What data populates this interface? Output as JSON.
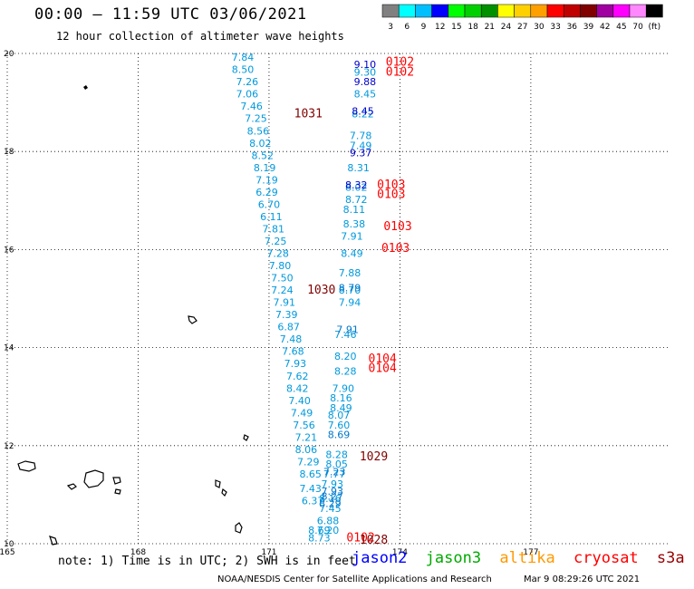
{
  "header": {
    "title": "00:00 – 11:59 UTC 03/06/2021",
    "subtitle": "12 hour collection of altimeter wave heights"
  },
  "colorbar": {
    "colors": [
      "#808080",
      "#00ffff",
      "#00bfff",
      "#0000ff",
      "#00ff00",
      "#00d000",
      "#009000",
      "#ffff00",
      "#ffd000",
      "#ffa000",
      "#ff0000",
      "#c00000",
      "#800000",
      "#a000a0",
      "#ff00ff",
      "#ff88ff",
      "#000000"
    ],
    "labels": [
      "3",
      "6",
      "9",
      "12",
      "15",
      "18",
      "21",
      "24",
      "27",
      "30",
      "33",
      "36",
      "39",
      "42",
      "45",
      "70",
      "(ft)"
    ]
  },
  "axes": {
    "x_ticks": [
      {
        "value": 165,
        "label": "165"
      },
      {
        "value": 168,
        "label": "168"
      },
      {
        "value": 171,
        "label": "171"
      },
      {
        "value": 174,
        "label": "174"
      },
      {
        "value": 177,
        "label": "177"
      }
    ],
    "y_ticks": [
      {
        "value": 10,
        "label": "10"
      },
      {
        "value": 12,
        "label": "12"
      },
      {
        "value": 14,
        "label": "14"
      },
      {
        "value": 16,
        "label": "16"
      },
      {
        "value": 18,
        "label": "18"
      },
      {
        "value": 20,
        "label": "20"
      }
    ],
    "xlim": [
      165,
      180.2
    ],
    "ylim": [
      10,
      20
    ],
    "grid": "dotted"
  },
  "tracks": [
    {
      "name": "left-track",
      "color": "#0099dd",
      "points": [
        {
          "lat": 19.85,
          "lon": 170.4,
          "v": "7.84"
        },
        {
          "lat": 19.6,
          "lon": 170.4,
          "v": "8.50"
        },
        {
          "lat": 19.35,
          "lon": 170.5,
          "v": "7.26"
        },
        {
          "lat": 19.1,
          "lon": 170.5,
          "v": "7.06"
        },
        {
          "lat": 18.85,
          "lon": 170.6,
          "v": "7.46"
        },
        {
          "lat": 18.6,
          "lon": 170.7,
          "v": "7.25"
        },
        {
          "lat": 18.35,
          "lon": 170.75,
          "v": "8.56"
        },
        {
          "lat": 18.1,
          "lon": 170.8,
          "v": "8.02"
        },
        {
          "lat": 17.85,
          "lon": 170.85,
          "v": "8.52"
        },
        {
          "lat": 17.6,
          "lon": 170.9,
          "v": "8.19"
        },
        {
          "lat": 17.35,
          "lon": 170.95,
          "v": "7.19"
        },
        {
          "lat": 17.1,
          "lon": 170.95,
          "v": "6.29"
        },
        {
          "lat": 16.85,
          "lon": 171.0,
          "v": "6.70"
        },
        {
          "lat": 16.6,
          "lon": 171.05,
          "v": "6.11"
        },
        {
          "lat": 16.35,
          "lon": 171.1,
          "v": "7.81"
        },
        {
          "lat": 16.1,
          "lon": 171.15,
          "v": "7.25"
        },
        {
          "lat": 15.85,
          "lon": 171.2,
          "v": "7.28"
        },
        {
          "lat": 15.6,
          "lon": 171.25,
          "v": "7.80"
        },
        {
          "lat": 15.35,
          "lon": 171.3,
          "v": "7.50"
        },
        {
          "lat": 15.1,
          "lon": 171.3,
          "v": "7.24"
        },
        {
          "lat": 14.85,
          "lon": 171.35,
          "v": "7.91"
        },
        {
          "lat": 14.6,
          "lon": 171.4,
          "v": "7.39"
        },
        {
          "lat": 14.35,
          "lon": 171.45,
          "v": "6.87"
        },
        {
          "lat": 14.1,
          "lon": 171.5,
          "v": "7.48"
        },
        {
          "lat": 13.85,
          "lon": 171.55,
          "v": "7.68"
        },
        {
          "lat": 13.6,
          "lon": 171.6,
          "v": "7.93"
        },
        {
          "lat": 13.35,
          "lon": 171.65,
          "v": "7.62"
        },
        {
          "lat": 13.1,
          "lon": 171.65,
          "v": "8.42"
        },
        {
          "lat": 12.85,
          "lon": 171.7,
          "v": "7.40"
        },
        {
          "lat": 12.6,
          "lon": 171.75,
          "v": "7.49"
        },
        {
          "lat": 12.35,
          "lon": 171.8,
          "v": "7.56"
        },
        {
          "lat": 12.1,
          "lon": 171.85,
          "v": "7.21"
        },
        {
          "lat": 11.85,
          "lon": 171.85,
          "v": "8.06"
        },
        {
          "lat": 11.6,
          "lon": 171.9,
          "v": "7.29"
        },
        {
          "lat": 11.35,
          "lon": 171.95,
          "v": "8.65"
        },
        {
          "lat": 11.05,
          "lon": 171.95,
          "v": "7.43"
        },
        {
          "lat": 10.8,
          "lon": 172.0,
          "v": "6.37"
        },
        {
          "lat": 10.2,
          "lon": 172.15,
          "v": "8.69"
        },
        {
          "lat": 10.05,
          "lon": 172.15,
          "v": "8.73"
        }
      ]
    },
    {
      "name": "right-track",
      "color": "#0099dd",
      "points": [
        {
          "lat": 19.55,
          "lon": 173.2,
          "v": "9.30"
        },
        {
          "lat": 19.1,
          "lon": 173.2,
          "v": "8.45"
        },
        {
          "lat": 18.7,
          "lon": 173.15,
          "v": "8.22"
        },
        {
          "lat": 18.25,
          "lon": 173.1,
          "v": "7.78"
        },
        {
          "lat": 18.05,
          "lon": 173.1,
          "v": "7.49"
        },
        {
          "lat": 17.6,
          "lon": 173.05,
          "v": "8.31"
        },
        {
          "lat": 17.2,
          "lon": 173.0,
          "v": "8.02"
        },
        {
          "lat": 16.95,
          "lon": 173.0,
          "v": "8.72"
        },
        {
          "lat": 16.75,
          "lon": 172.95,
          "v": "8.11"
        },
        {
          "lat": 16.45,
          "lon": 172.95,
          "v": "8.38"
        },
        {
          "lat": 16.2,
          "lon": 172.9,
          "v": "7.91"
        },
        {
          "lat": 15.85,
          "lon": 172.9,
          "v": "8.49"
        },
        {
          "lat": 15.45,
          "lon": 172.85,
          "v": "7.88"
        },
        {
          "lat": 15.1,
          "lon": 172.85,
          "v": "8.70"
        },
        {
          "lat": 14.85,
          "lon": 172.85,
          "v": "7.94"
        },
        {
          "lat": 14.2,
          "lon": 172.75,
          "v": "7.46"
        },
        {
          "lat": 13.75,
          "lon": 172.75,
          "v": "8.20"
        },
        {
          "lat": 13.45,
          "lon": 172.75,
          "v": "8.28"
        },
        {
          "lat": 13.1,
          "lon": 172.7,
          "v": "7.90"
        },
        {
          "lat": 12.9,
          "lon": 172.65,
          "v": "8.16"
        },
        {
          "lat": 12.7,
          "lon": 172.65,
          "v": "8.49"
        },
        {
          "lat": 12.55,
          "lon": 172.6,
          "v": "8.07"
        },
        {
          "lat": 12.35,
          "lon": 172.6,
          "v": "7.60"
        },
        {
          "lat": 11.75,
          "lon": 172.55,
          "v": "8.28"
        },
        {
          "lat": 11.55,
          "lon": 172.55,
          "v": "8.05"
        },
        {
          "lat": 11.35,
          "lon": 172.5,
          "v": "7.77"
        },
        {
          "lat": 11.15,
          "lon": 172.45,
          "v": "7.93"
        },
        {
          "lat": 10.85,
          "lon": 172.4,
          "v": "8.16"
        },
        {
          "lat": 10.65,
          "lon": 172.4,
          "v": "7.45"
        },
        {
          "lat": 10.4,
          "lon": 172.35,
          "v": "6.88"
        },
        {
          "lat": 10.2,
          "lon": 172.35,
          "v": "7.20"
        }
      ]
    },
    {
      "name": "right-track-dark",
      "color": "#0000cc",
      "points": [
        {
          "lat": 19.7,
          "lon": 173.2,
          "v": "9.10"
        },
        {
          "lat": 19.35,
          "lon": 173.2,
          "v": "9.88"
        },
        {
          "lat": 18.75,
          "lon": 173.15,
          "v": "8.45"
        },
        {
          "lat": 17.9,
          "lon": 173.1,
          "v": "9.37"
        },
        {
          "lat": 17.25,
          "lon": 173.0,
          "v": "8.32"
        }
      ]
    },
    {
      "name": "right-track-mid",
      "color": "#0077cc",
      "points": [
        {
          "lat": 15.15,
          "lon": 172.85,
          "v": "8.79"
        },
        {
          "lat": 14.3,
          "lon": 172.8,
          "v": "7.91"
        },
        {
          "lat": 12.15,
          "lon": 172.6,
          "v": "8.69"
        },
        {
          "lat": 11.4,
          "lon": 172.5,
          "v": "7.23"
        },
        {
          "lat": 11.0,
          "lon": 172.45,
          "v": "7.93"
        },
        {
          "lat": 10.9,
          "lon": 172.45,
          "v": "8.27"
        },
        {
          "lat": 10.75,
          "lon": 172.4,
          "v": "8.29"
        }
      ]
    }
  ],
  "labels": [
    {
      "text": "1031",
      "lat": 18.7,
      "lon": 171.9,
      "color": "#800000"
    },
    {
      "text": "1030",
      "lat": 15.1,
      "lon": 172.2,
      "color": "#800000"
    },
    {
      "text": "1029",
      "lat": 11.7,
      "lon": 173.4,
      "color": "#800000"
    },
    {
      "text": "0102",
      "lat": 19.75,
      "lon": 174.0,
      "color": "#ff0000"
    },
    {
      "text": "0102",
      "lat": 19.55,
      "lon": 174.0,
      "color": "#ff0000"
    },
    {
      "text": "0103",
      "lat": 17.25,
      "lon": 173.8,
      "color": "#ff0000"
    },
    {
      "text": "0103",
      "lat": 17.05,
      "lon": 173.8,
      "color": "#ff0000"
    },
    {
      "text": "0103",
      "lat": 16.4,
      "lon": 173.95,
      "color": "#ff0000"
    },
    {
      "text": "0103",
      "lat": 15.95,
      "lon": 173.9,
      "color": "#ff0000"
    },
    {
      "text": "0104",
      "lat": 13.7,
      "lon": 173.6,
      "color": "#ff0000"
    },
    {
      "text": "0104",
      "lat": 13.5,
      "lon": 173.6,
      "color": "#ff0000"
    },
    {
      "text": "0102",
      "lat": 10.05,
      "lon": 173.1,
      "color": "#ff0000"
    },
    {
      "text": "1028",
      "lat": 10.0,
      "lon": 173.4,
      "color": "#800000"
    }
  ],
  "footer": {
    "note": "note: 1) Time is in UTC; 2) SWH is in feet",
    "satellites": [
      {
        "name": "jason2",
        "color": "#0000ff"
      },
      {
        "name": "jason3",
        "color": "#00aa00"
      },
      {
        "name": "altika",
        "color": "#ff9900"
      },
      {
        "name": "cryosat",
        "color": "#ff0000"
      },
      {
        "name": "s3a",
        "color": "#990000"
      }
    ],
    "credit": "NOAA/NESDIS Center for Satellite Applications and Research",
    "timestamp": "Mar  9 08:29:26 UTC 2021"
  }
}
